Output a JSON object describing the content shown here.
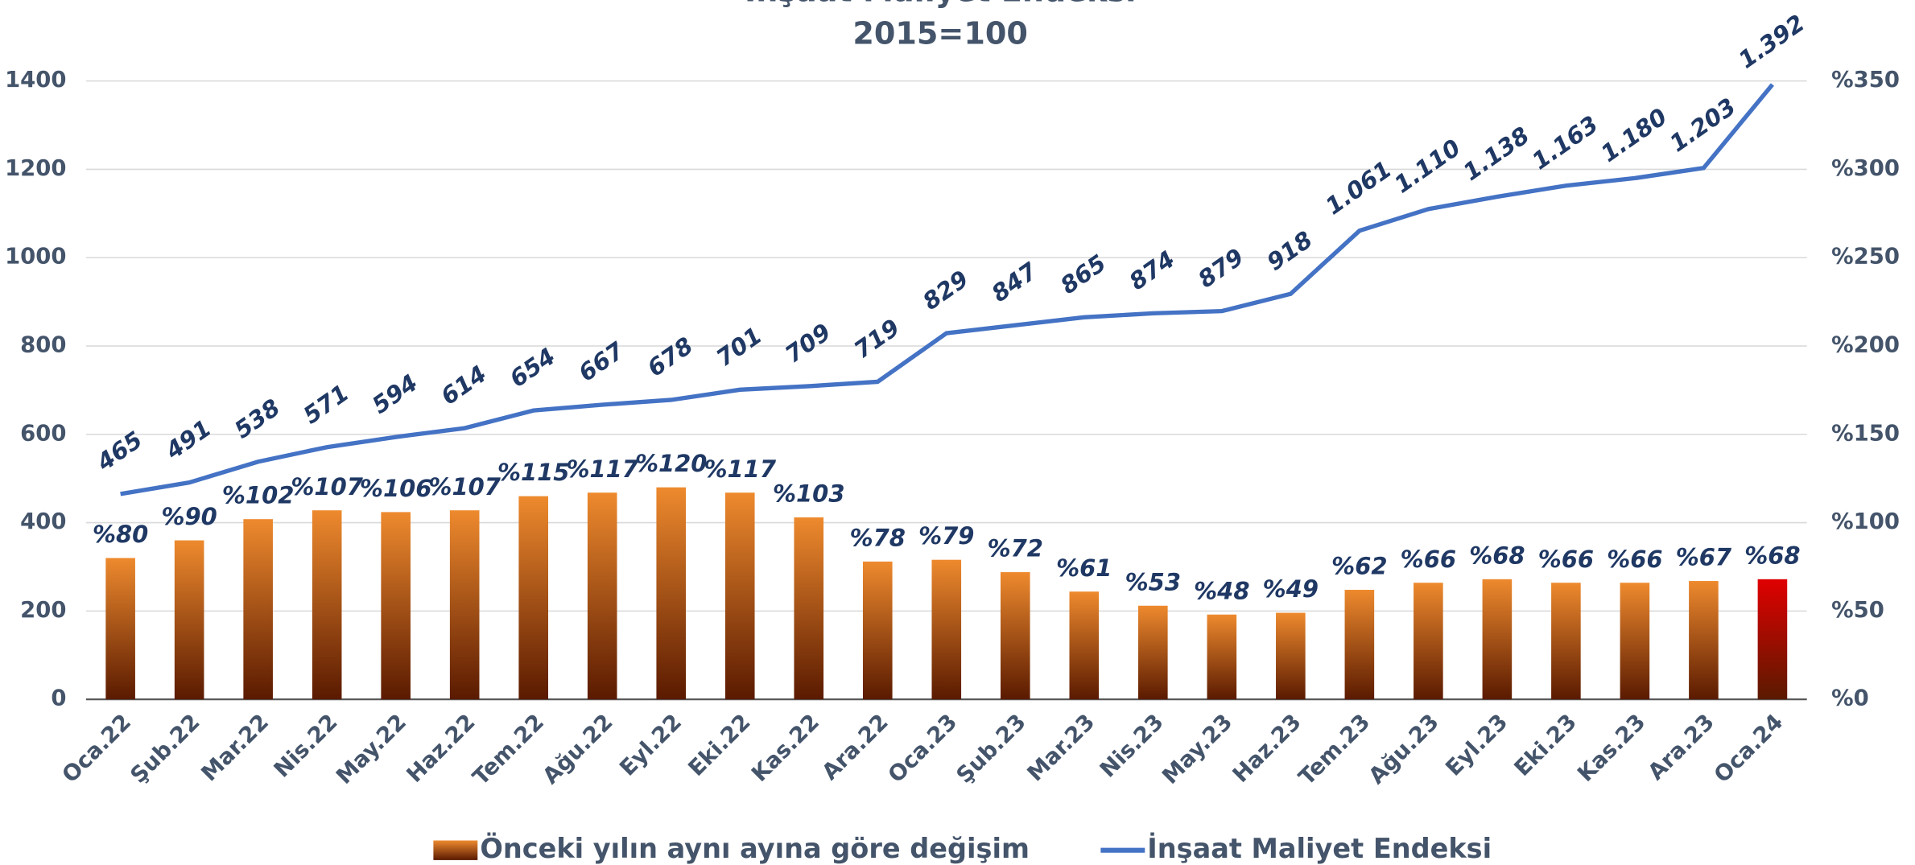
{
  "chart_data": {
    "type": "bar_line",
    "title": "İnşaat Maliyet Endeksi",
    "subtitle": "2015=100",
    "categories": [
      "Oca.22",
      "Şub.22",
      "Mar.22",
      "Nis.22",
      "May.22",
      "Haz.22",
      "Tem.22",
      "Ağu.22",
      "Eyl.22",
      "Eki.22",
      "Kas.22",
      "Ara.22",
      "Oca.23",
      "Şub.23",
      "Mar.23",
      "Nis.23",
      "May.23",
      "Haz.23",
      "Tem.23",
      "Ağu.23",
      "Eyl.23",
      "Eki.23",
      "Kas.23",
      "Ara.23",
      "Oca.24"
    ],
    "series": [
      {
        "name": "Önceki yılın aynı ayına göre değişim",
        "type": "bar",
        "axis": "y2",
        "color": "#ee8a2e",
        "colors": [
          "#ee8a2e",
          "#ee8a2e",
          "#ee8a2e",
          "#ee8a2e",
          "#ee8a2e",
          "#ee8a2e",
          "#ee8a2e",
          "#ee8a2e",
          "#ee8a2e",
          "#ee8a2e",
          "#ee8a2e",
          "#ee8a2e",
          "#ee8a2e",
          "#ee8a2e",
          "#ee8a2e",
          "#ee8a2e",
          "#ee8a2e",
          "#ee8a2e",
          "#ee8a2e",
          "#ee8a2e",
          "#ee8a2e",
          "#ee8a2e",
          "#ee8a2e",
          "#ee8a2e",
          "#e00000"
        ],
        "values": [
          80,
          90,
          102,
          107,
          106,
          107,
          115,
          117,
          120,
          117,
          103,
          78,
          79,
          72,
          61,
          53,
          48,
          49,
          62,
          66,
          68,
          66,
          66,
          67,
          68
        ],
        "value_labels": [
          "%80",
          "%90",
          "%102",
          "%107",
          "%106",
          "%107",
          "%115",
          "%117",
          "%120",
          "%117",
          "%103",
          "%78",
          "%79",
          "%72",
          "%61",
          "%53",
          "%48",
          "%49",
          "%62",
          "%66",
          "%68",
          "%66",
          "%66",
          "%67",
          "%68"
        ]
      },
      {
        "name": "İnşaat Maliyet Endeksi",
        "type": "line",
        "color": "#4472c4",
        "values": [
          465,
          491,
          538,
          571,
          594,
          614,
          654,
          667,
          678,
          701,
          709,
          719,
          829,
          847,
          865,
          874,
          879,
          918,
          1061,
          1110,
          1138,
          1163,
          1180,
          1203,
          1392
        ],
        "value_labels": [
          "465",
          "491",
          "538",
          "571",
          "594",
          "614",
          "654",
          "667",
          "678",
          "701",
          "709",
          "719",
          "829",
          "847",
          "865",
          "874",
          "879",
          "918",
          "1.061",
          "1.110",
          "1.138",
          "1.163",
          "1.180",
          "1.203",
          "1.392"
        ]
      }
    ],
    "ylim": [
      0,
      1400
    ],
    "yticks": [
      0,
      200,
      400,
      600,
      800,
      1000,
      1200,
      1400
    ],
    "y2lim": [
      0,
      350
    ],
    "y2ticks": [
      {
        "value": 0,
        "label": "%0"
      },
      {
        "value": 50,
        "label": "%50"
      },
      {
        "value": 100,
        "label": "%100"
      },
      {
        "value": 150,
        "label": "%150"
      },
      {
        "value": 200,
        "label": "%200"
      },
      {
        "value": 250,
        "label": "%250"
      },
      {
        "value": 300,
        "label": "%300"
      },
      {
        "value": 350,
        "label": "%350"
      }
    ],
    "grid": true,
    "legend": "bottom"
  }
}
